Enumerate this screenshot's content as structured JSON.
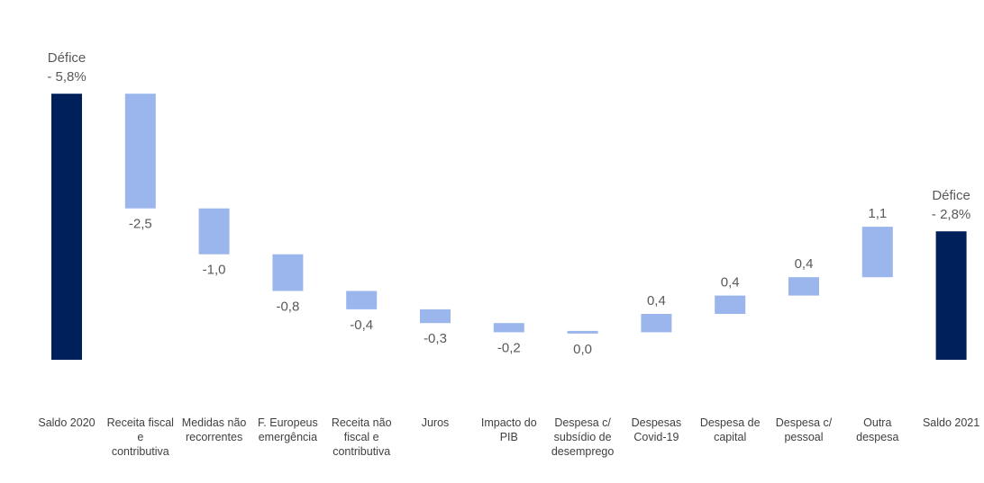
{
  "chart_data": {
    "type": "bar",
    "subtype": "waterfall",
    "title": "",
    "xlabel": "",
    "ylabel": "",
    "colors": {
      "total": "#00205b",
      "delta": "#9ab6ec",
      "text": "#595959"
    },
    "items": [
      {
        "kind": "total",
        "category": [
          "Saldo 2020"
        ],
        "value": -5.8,
        "label_top": "Défice",
        "label": "- 5,8%"
      },
      {
        "kind": "delta",
        "category": [
          "Receita fiscal",
          "e",
          "contributiva"
        ],
        "value": -2.5,
        "label": "-2,5"
      },
      {
        "kind": "delta",
        "category": [
          "Medidas não",
          "recorrentes"
        ],
        "value": -1.0,
        "label": "-1,0"
      },
      {
        "kind": "delta",
        "category": [
          "F. Europeus",
          "emergência"
        ],
        "value": -0.8,
        "label": "-0,8"
      },
      {
        "kind": "delta",
        "category": [
          "Receita não",
          "fiscal e",
          "contributiva"
        ],
        "value": -0.4,
        "label": "-0,4"
      },
      {
        "kind": "delta",
        "category": [
          "Juros"
        ],
        "value": -0.3,
        "label": "-0,3"
      },
      {
        "kind": "delta",
        "category": [
          "Impacto do",
          "PIB"
        ],
        "value": -0.2,
        "label": "-0,2"
      },
      {
        "kind": "delta",
        "category": [
          "Despesa c/",
          "subsídio de",
          "desemprego"
        ],
        "value": 0.0,
        "label": "0,0"
      },
      {
        "kind": "delta",
        "category": [
          "Despesas",
          "Covid-19"
        ],
        "value": 0.4,
        "label": "0,4"
      },
      {
        "kind": "delta",
        "category": [
          "Despesa de",
          "capital"
        ],
        "value": 0.4,
        "label": "0,4"
      },
      {
        "kind": "delta",
        "category": [
          "Despesa c/",
          "pessoal"
        ],
        "value": 0.4,
        "label": "0,4"
      },
      {
        "kind": "delta",
        "category": [
          "Outra",
          "despesa"
        ],
        "value": 1.1,
        "label": "1,1"
      },
      {
        "kind": "total",
        "category": [
          "Saldo 2021"
        ],
        "value": -2.8,
        "label_top": "Défice",
        "label": "- 2,8%"
      }
    ]
  }
}
